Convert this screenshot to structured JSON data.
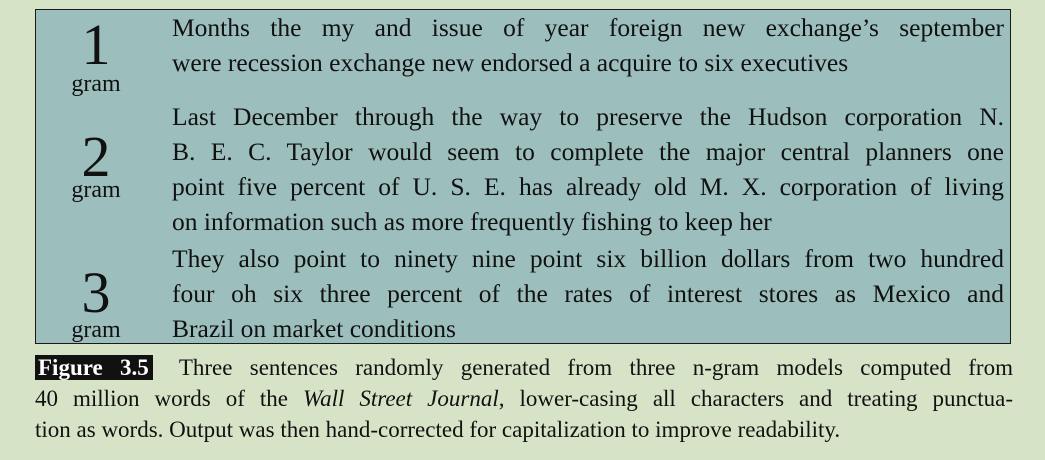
{
  "rows": [
    {
      "number": "1",
      "unit": "gram",
      "lines": [
        "Months the my and issue of year foreign new exchange’s september",
        "were recession exchange new endorsed a acquire to six executives"
      ]
    },
    {
      "number": "2",
      "unit": "gram",
      "lines": [
        "Last December through the way to preserve the Hudson corporation N.",
        "B. E. C. Taylor would seem to complete the major central planners one",
        "point five percent of U. S. E. has already old M. X. corporation of living",
        "on information such as more frequently fishing to keep her"
      ]
    },
    {
      "number": "3",
      "unit": "gram",
      "lines": [
        "They also point to ninety nine point six billion dollars from two hundred",
        "four oh six three percent of the rates of interest stores as Mexico and",
        "Brazil on market conditions"
      ]
    }
  ],
  "caption": {
    "label": "Figure 3.5",
    "line1": "Three sentences randomly generated from three n-gram models computed from",
    "line2_pre": "40 million words of the ",
    "line2_italic": "Wall Street Journal",
    "line2_post": ", lower-casing all characters and treating punctua-",
    "line3": "tion as words. Output was then hand-corrected for capitalization to improve readability."
  }
}
